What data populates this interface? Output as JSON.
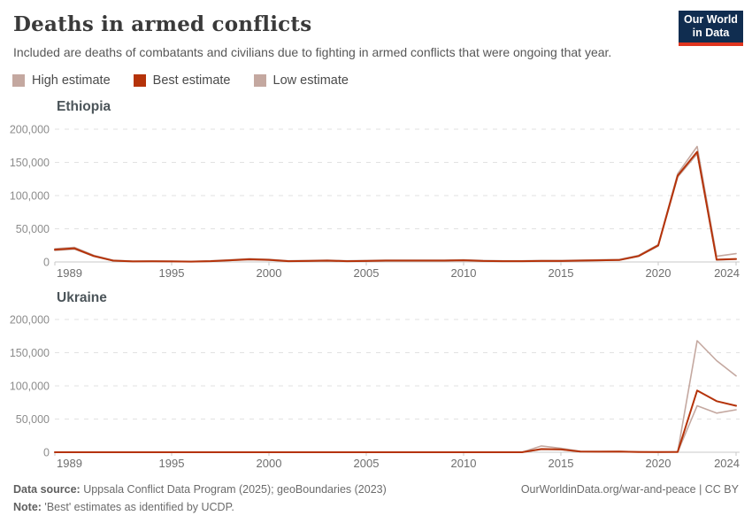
{
  "logo": {
    "line1": "Our World",
    "line2": "in Data"
  },
  "header": {
    "title": "Deaths in armed conflicts",
    "subtitle": "Included are deaths of combatants and civilians due to fighting in armed conflicts that were ongoing that year."
  },
  "colors": {
    "band": "#c4a8a0",
    "best": "#b5330a",
    "grid": "#e2e2e2",
    "axis": "#c8c8c8",
    "logo_bg": "#102d50",
    "logo_stripe": "#e0351f"
  },
  "legend": {
    "items": [
      {
        "label": "High estimate",
        "color": "#c4a8a0"
      },
      {
        "label": "Best estimate",
        "color": "#b5330a"
      },
      {
        "label": "Low estimate",
        "color": "#c4a8a0"
      }
    ]
  },
  "chart_data": [
    {
      "type": "line",
      "title": "Ethiopia",
      "x": [
        1989,
        1990,
        1991,
        1992,
        1993,
        1994,
        1995,
        1996,
        1997,
        1998,
        1999,
        2000,
        2001,
        2002,
        2003,
        2004,
        2005,
        2006,
        2007,
        2008,
        2009,
        2010,
        2011,
        2012,
        2013,
        2014,
        2015,
        2016,
        2017,
        2018,
        2019,
        2020,
        2021,
        2022,
        2023,
        2024
      ],
      "series": [
        {
          "name": "High estimate",
          "color": "#c4a8a0",
          "values": [
            20000,
            22000,
            10000,
            2500,
            1200,
            1500,
            1200,
            900,
            1800,
            3200,
            5000,
            4000,
            1800,
            2200,
            2800,
            1800,
            2200,
            2800,
            2800,
            2800,
            2800,
            3300,
            2200,
            1800,
            1800,
            2200,
            2200,
            2800,
            3300,
            3800,
            10000,
            26000,
            133000,
            174000,
            8500,
            12500
          ]
        },
        {
          "name": "Best estimate",
          "color": "#b5330a",
          "values": [
            18500,
            20500,
            9000,
            2000,
            800,
            1000,
            800,
            600,
            1200,
            2500,
            4000,
            3200,
            1200,
            1500,
            2000,
            1200,
            1500,
            2000,
            2000,
            2000,
            2000,
            2500,
            1500,
            1200,
            1200,
            1500,
            1500,
            2000,
            2500,
            3000,
            9000,
            25000,
            130000,
            166000,
            3500,
            4500
          ]
        },
        {
          "name": "Low estimate",
          "color": "#c4a8a0",
          "values": [
            17500,
            19500,
            8500,
            1800,
            700,
            900,
            700,
            500,
            1000,
            2200,
            3500,
            2800,
            1000,
            1300,
            1700,
            1000,
            1300,
            1700,
            1700,
            1700,
            1700,
            2200,
            1300,
            1000,
            1000,
            1300,
            1300,
            1700,
            2200,
            2700,
            8500,
            24000,
            128000,
            163000,
            3000,
            4000
          ]
        }
      ],
      "ylim": [
        0,
        200000
      ],
      "yticks": [
        0,
        50000,
        100000,
        150000,
        200000
      ],
      "ytick_labels": [
        "0",
        "50,000",
        "100,000",
        "150,000",
        "200,000"
      ],
      "xticks": [
        1989,
        1995,
        2000,
        2005,
        2010,
        2015,
        2020,
        2024
      ],
      "xtick_labels": [
        "1989",
        "1995",
        "2000",
        "2005",
        "2010",
        "2015",
        "2020",
        "2024"
      ],
      "grid": "dashed-horizontal",
      "legend_position": "top"
    },
    {
      "type": "line",
      "title": "Ukraine",
      "x": [
        1989,
        1990,
        1991,
        1992,
        1993,
        1994,
        1995,
        1996,
        1997,
        1998,
        1999,
        2000,
        2001,
        2002,
        2003,
        2004,
        2005,
        2006,
        2007,
        2008,
        2009,
        2010,
        2011,
        2012,
        2013,
        2014,
        2015,
        2016,
        2017,
        2018,
        2019,
        2020,
        2021,
        2022,
        2023,
        2024
      ],
      "series": [
        {
          "name": "High estimate",
          "color": "#c4a8a0",
          "values": [
            0,
            0,
            0,
            0,
            0,
            0,
            0,
            0,
            0,
            0,
            0,
            0,
            0,
            0,
            0,
            0,
            0,
            0,
            0,
            0,
            0,
            0,
            0,
            0,
            0,
            9500,
            6000,
            1500,
            1200,
            1300,
            600,
            300,
            600,
            168000,
            138000,
            115000
          ]
        },
        {
          "name": "Best estimate",
          "color": "#b5330a",
          "values": [
            0,
            0,
            0,
            0,
            0,
            0,
            0,
            0,
            0,
            0,
            0,
            0,
            0,
            0,
            0,
            0,
            0,
            0,
            0,
            0,
            0,
            0,
            0,
            0,
            0,
            4800,
            4300,
            1000,
            800,
            900,
            400,
            200,
            400,
            93000,
            77000,
            70000
          ]
        },
        {
          "name": "Low estimate",
          "color": "#c4a8a0",
          "values": [
            0,
            0,
            0,
            0,
            0,
            0,
            0,
            0,
            0,
            0,
            0,
            0,
            0,
            0,
            0,
            0,
            0,
            0,
            0,
            0,
            0,
            0,
            0,
            0,
            0,
            4300,
            3900,
            900,
            700,
            800,
            350,
            180,
            350,
            70000,
            59000,
            64000
          ]
        }
      ],
      "ylim": [
        0,
        200000
      ],
      "yticks": [
        0,
        50000,
        100000,
        150000,
        200000
      ],
      "ytick_labels": [
        "0",
        "50,000",
        "100,000",
        "150,000",
        "200,000"
      ],
      "xticks": [
        1989,
        1995,
        2000,
        2005,
        2010,
        2015,
        2020,
        2024
      ],
      "xtick_labels": [
        "1989",
        "1995",
        "2000",
        "2005",
        "2010",
        "2015",
        "2020",
        "2024"
      ],
      "grid": "dashed-horizontal",
      "legend_position": "top"
    }
  ],
  "footer": {
    "source_label": "Data source:",
    "source_text": " Uppsala Conflict Data Program (2025); geoBoundaries (2023)",
    "note_label": "Note:",
    "note_text": " 'Best' estimates as identified by UCDP.",
    "credit": "OurWorldinData.org/war-and-peace | CC BY"
  }
}
